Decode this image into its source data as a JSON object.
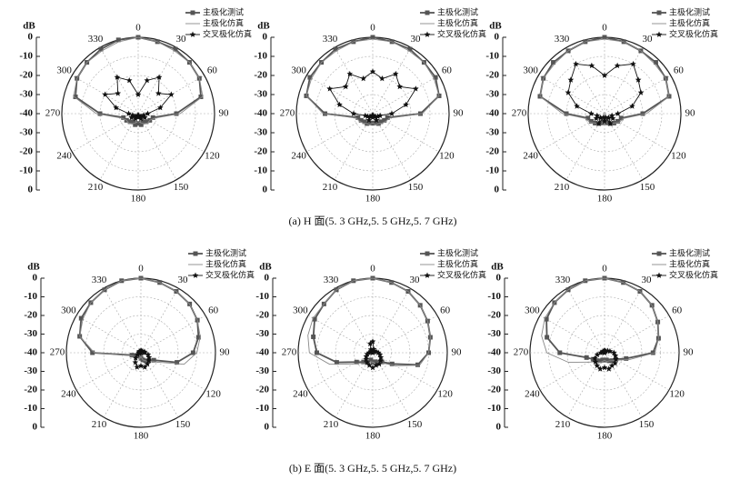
{
  "chart_data": [
    {
      "type": "polar",
      "ylabel": "dB",
      "ylim": [
        -40,
        0
      ],
      "yticks": [
        0,
        -10,
        -20,
        -30,
        -40
      ],
      "xticks": [
        0,
        30,
        60,
        90,
        120,
        150,
        180,
        210,
        240,
        270,
        300,
        330
      ],
      "grid": true,
      "legend": "upper right",
      "x": [
        0,
        15,
        30,
        45,
        60,
        75,
        90,
        105,
        120,
        135,
        150,
        165,
        180,
        195,
        210,
        225,
        240,
        255,
        270,
        285,
        300,
        315,
        330,
        345
      ],
      "series": [
        {
          "name": "主极化测试",
          "color": "#555555",
          "marker": "square",
          "values": [
            0,
            -1,
            -1,
            -2,
            -3,
            -6,
            -20,
            -32,
            -33,
            -34,
            -35,
            -34,
            -35,
            -34,
            -35,
            -34,
            -33,
            -32,
            -20,
            -6,
            -3,
            -2,
            -1,
            0
          ]
        },
        {
          "name": "主极化仿真",
          "color": "#888888",
          "marker": "none",
          "values": [
            0,
            -1,
            -2,
            -2,
            -3,
            -5,
            -18,
            -31,
            -33,
            -33,
            -34,
            -35,
            -36,
            -35,
            -34,
            -33,
            -33,
            -31,
            -18,
            -5,
            -3,
            -2,
            -2,
            -1
          ]
        },
        {
          "name": "交叉极化仿真",
          "color": "#111111",
          "marker": "star",
          "values": [
            -30,
            -22,
            -18,
            -25,
            -20,
            -28,
            -35,
            -37,
            -36,
            -38,
            -37,
            -39,
            -38,
            -39,
            -37,
            -38,
            -36,
            -37,
            -35,
            -28,
            -20,
            -25,
            -18,
            -22
          ]
        }
      ]
    },
    {
      "type": "polar",
      "ylabel": "dB",
      "ylim": [
        -40,
        0
      ],
      "yticks": [
        0,
        -10,
        -20,
        -30,
        -40
      ],
      "xticks": [
        0,
        30,
        60,
        90,
        120,
        150,
        180,
        210,
        240,
        270,
        300,
        330
      ],
      "grid": true,
      "legend": "upper right",
      "x": [
        0,
        15,
        30,
        45,
        60,
        75,
        90,
        105,
        120,
        135,
        150,
        165,
        180,
        195,
        210,
        225,
        240,
        255,
        270,
        285,
        300,
        315,
        330,
        345
      ],
      "series": [
        {
          "name": "主极化测试",
          "color": "#555555",
          "marker": "square",
          "values": [
            0,
            -1,
            -1,
            -2,
            -2,
            -4,
            -15,
            -32,
            -33,
            -34,
            -34,
            -35,
            -35,
            -35,
            -34,
            -34,
            -33,
            -32,
            -15,
            -4,
            -2,
            -2,
            -1,
            -1
          ]
        },
        {
          "name": "主极化仿真",
          "color": "#888888",
          "marker": "none",
          "values": [
            -1,
            -1,
            -2,
            -2,
            -3,
            -4,
            -14,
            -31,
            -32,
            -33,
            -34,
            -34,
            -35,
            -34,
            -34,
            -33,
            -32,
            -31,
            -14,
            -4,
            -3,
            -2,
            -2,
            -1
          ]
        },
        {
          "name": "交叉极化仿真",
          "color": "#111111",
          "marker": "star",
          "values": [
            -18,
            -21,
            -16,
            -20,
            -14,
            -22,
            -30,
            -36,
            -37,
            -38,
            -36,
            -39,
            -38,
            -39,
            -36,
            -38,
            -37,
            -36,
            -30,
            -22,
            -14,
            -20,
            -16,
            -21
          ]
        }
      ]
    },
    {
      "type": "polar",
      "ylabel": "dB",
      "ylim": [
        -40,
        0
      ],
      "yticks": [
        0,
        -10,
        -20,
        -30,
        -40
      ],
      "xticks": [
        0,
        30,
        60,
        90,
        120,
        150,
        180,
        210,
        240,
        270,
        300,
        330
      ],
      "grid": true,
      "legend": "upper right",
      "x": [
        0,
        15,
        30,
        45,
        60,
        75,
        90,
        105,
        120,
        135,
        150,
        165,
        180,
        195,
        210,
        225,
        240,
        255,
        270,
        285,
        300,
        315,
        330,
        345
      ],
      "series": [
        {
          "name": "主极化测试",
          "color": "#555555",
          "marker": "square",
          "values": [
            0,
            -1,
            -2,
            -2,
            -3,
            -5,
            -20,
            -31,
            -32,
            -33,
            -34,
            -35,
            -36,
            -35,
            -34,
            -33,
            -32,
            -31,
            -20,
            -5,
            -3,
            -2,
            -2,
            -1
          ]
        },
        {
          "name": "主极化仿真",
          "color": "#888888",
          "marker": "none",
          "values": [
            -1,
            -1,
            -2,
            -3,
            -3,
            -5,
            -18,
            -30,
            -31,
            -33,
            -34,
            -35,
            -35,
            -35,
            -34,
            -33,
            -31,
            -30,
            -18,
            -5,
            -3,
            -3,
            -2,
            -1
          ]
        },
        {
          "name": "交叉极化仿真",
          "color": "#111111",
          "marker": "star",
          "values": [
            -20,
            -14,
            -10,
            -15,
            -18,
            -25,
            -33,
            -36,
            -35,
            -37,
            -34,
            -38,
            -36,
            -38,
            -34,
            -37,
            -35,
            -36,
            -33,
            -25,
            -18,
            -15,
            -10,
            -14
          ]
        }
      ]
    },
    {
      "type": "polar",
      "ylabel": "dB",
      "ylim": [
        -40,
        0
      ],
      "yticks": [
        0,
        -10,
        -20,
        -30,
        -40
      ],
      "xticks": [
        0,
        30,
        60,
        90,
        120,
        150,
        180,
        210,
        240,
        270,
        300,
        330
      ],
      "grid": true,
      "legend": "upper right",
      "x": [
        0,
        15,
        30,
        45,
        60,
        75,
        90,
        105,
        120,
        135,
        150,
        165,
        180,
        195,
        210,
        225,
        240,
        255,
        270,
        285,
        300,
        315,
        330,
        345
      ],
      "series": [
        {
          "name": "主极化测试",
          "color": "#555555",
          "marker": "square",
          "values": [
            0,
            -1,
            -2,
            -3,
            -5,
            -8,
            -12,
            -20,
            -32,
            -34,
            -35,
            -36,
            -37,
            -38,
            -39,
            -38,
            -37,
            -35,
            -14,
            -6,
            -3,
            -2,
            -1,
            0
          ]
        },
        {
          "name": "主极化仿真",
          "color": "#888888",
          "marker": "none",
          "values": [
            0,
            -1,
            -2,
            -3,
            -5,
            -7,
            -10,
            -16,
            -30,
            -34,
            -35,
            -36,
            -38,
            -36,
            -39,
            -37,
            -36,
            -34,
            -15,
            -6,
            -4,
            -2,
            -1,
            0
          ]
        },
        {
          "name": "交叉极化仿真",
          "color": "#111111",
          "marker": "star",
          "values": [
            -39,
            -39,
            -40,
            -39,
            -39,
            -38,
            -38,
            -36,
            -35,
            -34,
            -33,
            -32,
            -33,
            -32,
            -34,
            -36,
            -38,
            -39,
            -39,
            -40,
            -39,
            -40,
            -39,
            -40
          ]
        }
      ]
    },
    {
      "type": "polar",
      "ylabel": "dB",
      "ylim": [
        -40,
        0
      ],
      "yticks": [
        0,
        -10,
        -20,
        -30,
        -40
      ],
      "xticks": [
        0,
        30,
        60,
        90,
        120,
        150,
        180,
        210,
        240,
        270,
        300,
        330
      ],
      "grid": true,
      "legend": "upper right",
      "x": [
        0,
        15,
        30,
        45,
        60,
        75,
        90,
        105,
        120,
        135,
        150,
        165,
        180,
        195,
        210,
        225,
        240,
        255,
        270,
        285,
        300,
        315,
        330,
        345
      ],
      "series": [
        {
          "name": "主极化测试",
          "color": "#555555",
          "marker": "square",
          "values": [
            0,
            -1,
            -2,
            -4,
            -6,
            -8,
            -10,
            -15,
            -28,
            -33,
            -34,
            -35,
            -35,
            -36,
            -34,
            -33,
            -30,
            -20,
            -10,
            -7,
            -4,
            -3,
            -1,
            0
          ]
        },
        {
          "name": "主极化仿真",
          "color": "#888888",
          "marker": "none",
          "values": [
            0,
            -1,
            -2,
            -4,
            -6,
            -8,
            -10,
            -14,
            -26,
            -32,
            -34,
            -34,
            -35,
            -35,
            -33,
            -32,
            -28,
            -16,
            -6,
            -4,
            -3,
            -3,
            -1,
            0
          ]
        },
        {
          "name": "交叉极化仿真",
          "color": "#111111",
          "marker": "star",
          "values": [
            -34,
            -38,
            -39,
            -40,
            -39,
            -38,
            -37,
            -36,
            -35,
            -34,
            -33,
            -33,
            -32,
            -33,
            -34,
            -35,
            -36,
            -37,
            -38,
            -39,
            -40,
            -39,
            -38,
            -35
          ]
        }
      ]
    },
    {
      "type": "polar",
      "ylabel": "dB",
      "ylim": [
        -40,
        0
      ],
      "yticks": [
        0,
        -10,
        -20,
        -30,
        -40
      ],
      "xticks": [
        0,
        30,
        60,
        90,
        120,
        150,
        180,
        210,
        240,
        270,
        300,
        330
      ],
      "grid": true,
      "legend": "upper right",
      "x": [
        0,
        15,
        30,
        45,
        60,
        75,
        90,
        105,
        120,
        135,
        150,
        165,
        180,
        195,
        210,
        225,
        240,
        255,
        270,
        285,
        300,
        315,
        330,
        345
      ],
      "series": [
        {
          "name": "主极化测试",
          "color": "#555555",
          "marker": "square",
          "values": [
            0,
            -1,
            -2,
            -4,
            -7,
            -10,
            -14,
            -28,
            -33,
            -34,
            -35,
            -36,
            -36,
            -36,
            -35,
            -34,
            -33,
            -30,
            -16,
            -8,
            -4,
            -2,
            -1,
            0
          ]
        },
        {
          "name": "主极化仿真",
          "color": "#888888",
          "marker": "none",
          "values": [
            0,
            -1,
            -2,
            -4,
            -7,
            -10,
            -13,
            -26,
            -32,
            -34,
            -35,
            -35,
            -36,
            -35,
            -34,
            -33,
            -30,
            -20,
            -9,
            -5,
            -3,
            -2,
            -1,
            0
          ]
        },
        {
          "name": "交叉极化仿真",
          "color": "#111111",
          "marker": "star",
          "values": [
            -39,
            -39,
            -40,
            -39,
            -38,
            -37,
            -35,
            -34,
            -33,
            -32,
            -32,
            -31,
            -32,
            -31,
            -32,
            -33,
            -34,
            -36,
            -38,
            -39,
            -40,
            -39,
            -40,
            -39
          ]
        }
      ]
    }
  ],
  "captions": [
    "(a) H 面(5. 3 GHz,5. 5 GHz,5. 7 GHz)",
    "(b) E 面(5. 3 GHz,5. 5 GHz,5. 7 GHz)"
  ]
}
